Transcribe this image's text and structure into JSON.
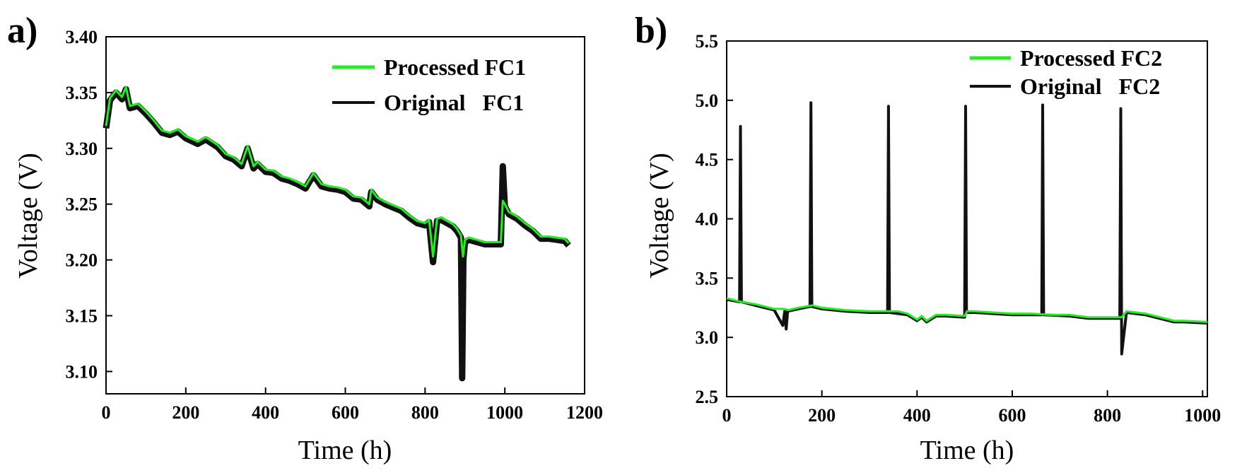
{
  "figure": {
    "colors": {
      "processed": "#22ee22",
      "original": "#111111",
      "axis": "#000000"
    }
  },
  "chart_data": [
    {
      "type": "line",
      "panel_label": "a)",
      "xlabel": "Time (h)",
      "ylabel": "Voltage (V)",
      "xlim": [
        0,
        1200
      ],
      "ylim": [
        3.08,
        3.4
      ],
      "xticks": [
        0,
        200,
        400,
        600,
        800,
        1000,
        1200
      ],
      "xtick_labels": [
        "0",
        "200",
        "400",
        "600",
        "800",
        "1000",
        "1200"
      ],
      "yticks": [
        3.1,
        3.15,
        3.2,
        3.25,
        3.3,
        3.35,
        3.4
      ],
      "ytick_labels": [
        "3.10",
        "3.15",
        "3.20",
        "3.25",
        "3.30",
        "3.35",
        "3.40"
      ],
      "legend": {
        "location": "top-right",
        "entries": [
          "Processed FC1",
          "Original   FC1"
        ]
      },
      "series": [
        {
          "name": "Processed FC1",
          "x": [
            0,
            10,
            25,
            40,
            50,
            60,
            80,
            100,
            120,
            140,
            160,
            180,
            200,
            230,
            250,
            280,
            300,
            320,
            340,
            355,
            370,
            380,
            400,
            420,
            440,
            460,
            480,
            500,
            520,
            540,
            560,
            580,
            600,
            620,
            640,
            660,
            665,
            680,
            700,
            720,
            740,
            760,
            780,
            800,
            810,
            820,
            830,
            840,
            850,
            870,
            880,
            890,
            895,
            900,
            910,
            930,
            950,
            970,
            990,
            995,
            1000,
            1010,
            1030,
            1050,
            1070,
            1090,
            1110,
            1130,
            1150,
            1160
          ],
          "y": [
            3.32,
            3.345,
            3.352,
            3.346,
            3.355,
            3.338,
            3.34,
            3.333,
            3.325,
            3.316,
            3.314,
            3.317,
            3.311,
            3.306,
            3.31,
            3.303,
            3.295,
            3.292,
            3.286,
            3.302,
            3.284,
            3.288,
            3.281,
            3.28,
            3.275,
            3.273,
            3.27,
            3.266,
            3.278,
            3.268,
            3.266,
            3.265,
            3.263,
            3.257,
            3.256,
            3.25,
            3.263,
            3.256,
            3.252,
            3.249,
            3.246,
            3.24,
            3.235,
            3.233,
            3.236,
            3.203,
            3.237,
            3.238,
            3.236,
            3.232,
            3.228,
            3.222,
            3.203,
            3.218,
            3.22,
            3.218,
            3.216,
            3.216,
            3.216,
            3.253,
            3.25,
            3.243,
            3.239,
            3.233,
            3.228,
            3.221,
            3.221,
            3.22,
            3.219,
            3.215
          ]
        },
        {
          "name": "Original   FC1",
          "x": [
            0,
            10,
            25,
            40,
            50,
            60,
            80,
            100,
            120,
            140,
            160,
            180,
            200,
            230,
            250,
            280,
            300,
            320,
            340,
            355,
            370,
            380,
            400,
            420,
            440,
            460,
            480,
            500,
            520,
            540,
            560,
            580,
            600,
            620,
            640,
            660,
            665,
            680,
            700,
            720,
            740,
            760,
            780,
            800,
            810,
            820,
            830,
            840,
            850,
            870,
            880,
            890,
            893,
            896,
            900,
            910,
            930,
            950,
            970,
            990,
            995,
            1000,
            1010,
            1030,
            1050,
            1070,
            1090,
            1110,
            1130,
            1150,
            1160
          ],
          "y": [
            3.318,
            3.343,
            3.35,
            3.344,
            3.353,
            3.336,
            3.338,
            3.331,
            3.323,
            3.314,
            3.312,
            3.315,
            3.309,
            3.304,
            3.308,
            3.301,
            3.293,
            3.29,
            3.284,
            3.3,
            3.282,
            3.286,
            3.279,
            3.278,
            3.273,
            3.271,
            3.268,
            3.264,
            3.276,
            3.266,
            3.264,
            3.263,
            3.261,
            3.255,
            3.254,
            3.248,
            3.261,
            3.254,
            3.25,
            3.247,
            3.244,
            3.238,
            3.233,
            3.231,
            3.234,
            3.198,
            3.235,
            3.236,
            3.234,
            3.23,
            3.226,
            3.22,
            3.094,
            3.2,
            3.216,
            3.218,
            3.216,
            3.214,
            3.214,
            3.214,
            3.284,
            3.248,
            3.241,
            3.237,
            3.231,
            3.226,
            3.219,
            3.219,
            3.218,
            3.217,
            3.213
          ]
        }
      ]
    },
    {
      "type": "line",
      "panel_label": "b)",
      "xlabel": "Time (h)",
      "ylabel": "Voltage (V)",
      "xlim": [
        0,
        1010
      ],
      "ylim": [
        2.5,
        5.5
      ],
      "xticks": [
        0,
        200,
        400,
        600,
        800,
        1000
      ],
      "xtick_labels": [
        "0",
        "200",
        "400",
        "600",
        "800",
        "1000"
      ],
      "yticks": [
        2.5,
        3.0,
        3.5,
        4.0,
        4.5,
        5.0,
        5.5
      ],
      "ytick_labels": [
        "2.5",
        "3.0",
        "3.5",
        "4.0",
        "4.5",
        "5.0",
        "5.5"
      ],
      "legend": {
        "location": "top-right",
        "entries": [
          "Processed FC2",
          "Original   FC2"
        ]
      },
      "series": [
        {
          "name": "Processed FC2",
          "x": [
            0,
            30,
            60,
            100,
            120,
            130,
            150,
            180,
            200,
            250,
            300,
            340,
            360,
            380,
            400,
            410,
            420,
            440,
            460,
            500,
            505,
            520,
            560,
            600,
            640,
            680,
            720,
            760,
            800,
            830,
            840,
            880,
            920,
            940,
            960,
            1010
          ],
          "y": [
            3.33,
            3.3,
            3.28,
            3.24,
            3.24,
            3.23,
            3.25,
            3.27,
            3.25,
            3.23,
            3.22,
            3.22,
            3.22,
            3.2,
            3.15,
            3.18,
            3.14,
            3.19,
            3.19,
            3.18,
            3.22,
            3.22,
            3.21,
            3.2,
            3.2,
            3.19,
            3.19,
            3.17,
            3.17,
            3.17,
            3.22,
            3.2,
            3.16,
            3.14,
            3.14,
            3.13
          ]
        },
        {
          "name": "Original   FC2",
          "x": [
            0,
            27,
            29,
            31,
            60,
            100,
            118,
            122,
            125,
            128,
            150,
            175,
            177,
            179,
            200,
            250,
            300,
            338,
            340,
            342,
            380,
            400,
            410,
            420,
            440,
            460,
            500,
            502,
            504,
            520,
            560,
            600,
            640,
            662,
            664,
            666,
            720,
            760,
            800,
            826,
            828,
            830,
            840,
            880,
            920,
            940,
            960,
            1010
          ],
          "y": [
            3.32,
            3.3,
            4.78,
            3.3,
            3.27,
            3.23,
            3.1,
            3.22,
            3.07,
            3.22,
            3.24,
            3.26,
            4.98,
            3.26,
            3.24,
            3.22,
            3.21,
            3.21,
            4.95,
            3.21,
            3.19,
            3.14,
            3.17,
            3.13,
            3.18,
            3.18,
            3.17,
            4.95,
            3.21,
            3.21,
            3.2,
            3.19,
            3.19,
            3.19,
            4.96,
            3.19,
            3.18,
            3.16,
            3.16,
            3.16,
            4.93,
            2.86,
            3.21,
            3.19,
            3.15,
            3.13,
            3.13,
            3.12
          ]
        }
      ]
    }
  ]
}
